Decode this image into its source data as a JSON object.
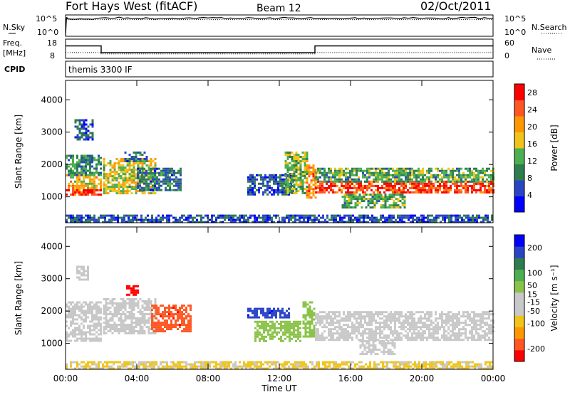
{
  "header": {
    "station": "Fort Hays West (fitACF)",
    "beam": "Beam 12",
    "date": "02/Oct/2011"
  },
  "chart_data": [
    {
      "type": "line",
      "name": "noise-panel",
      "left_label": "N.Sky",
      "right_label": "N.Search",
      "left_ticks": [
        "10^5",
        "10^0"
      ],
      "right_ticks": [
        "10^5",
        "10^0"
      ],
      "scale": "log",
      "series": [
        {
          "name": "N.Sky",
          "style": "solid",
          "x_hours": [
            0,
            0.05,
            0.1,
            2,
            4,
            6,
            8,
            10,
            12,
            14,
            16,
            18,
            20,
            22,
            24
          ],
          "y_level": [
            0.0,
            0.85,
            0.82,
            0.86,
            0.84,
            0.85,
            0.86,
            0.84,
            0.85,
            0.83,
            0.85,
            0.86,
            0.84,
            0.85,
            0.84
          ]
        },
        {
          "name": "N.Search",
          "style": "dotted",
          "x_hours": [
            0,
            24
          ],
          "y_level": [
            0.78,
            0.78
          ]
        }
      ]
    },
    {
      "type": "line",
      "name": "frequency-panel",
      "left_label": "Freq. [MHz]",
      "right_label": "Nave",
      "left_ticks": [
        "18",
        "8"
      ],
      "right_ticks": [
        "60",
        "0"
      ],
      "left_range": [
        8,
        18
      ],
      "right_range": [
        0,
        60
      ],
      "series": [
        {
          "name": "Freq.",
          "style": "solid",
          "x_hours": [
            0,
            2,
            2,
            14,
            14,
            24
          ],
          "y": [
            14.5,
            14.5,
            11.0,
            11.0,
            14.5,
            14.5
          ]
        },
        {
          "name": "Nave",
          "style": "dotted",
          "x_hours": [
            0,
            2,
            2,
            14,
            14,
            24
          ],
          "y": [
            18,
            18,
            14,
            14,
            18,
            18
          ]
        }
      ]
    },
    {
      "type": "text",
      "name": "cpid-panel",
      "label": "CPID",
      "value": "themis 3300 IF"
    },
    {
      "type": "heatmap",
      "name": "power-panel",
      "ylabel": "Slant Range [km]",
      "yticks": [
        1000,
        2000,
        3000,
        4000
      ],
      "ylim": [
        200,
        4600
      ],
      "colorbar": {
        "label": "Power [dB]",
        "ticks": [
          4,
          8,
          12,
          16,
          20,
          24,
          28
        ],
        "range": [
          0,
          30
        ],
        "colors": [
          "#0000ff",
          "#2a45c4",
          "#2e7d4f",
          "#4caf50",
          "#f0c419",
          "#ff9800",
          "#ff5722",
          "#ff0000"
        ]
      },
      "blobs": [
        {
          "t": [
            0.0,
            2.0
          ],
          "r": [
            1100,
            1300
          ],
          "v": 26
        },
        {
          "t": [
            0.0,
            2.0
          ],
          "r": [
            1300,
            1700
          ],
          "v": 18
        },
        {
          "t": [
            0.0,
            2.0
          ],
          "r": [
            1700,
            2300
          ],
          "v": 10
        },
        {
          "t": [
            0.5,
            1.5
          ],
          "r": [
            2800,
            3400
          ],
          "v": 6
        },
        {
          "t": [
            2.1,
            5.0
          ],
          "r": [
            1100,
            2200
          ],
          "v": 16
        },
        {
          "t": [
            4.0,
            6.5
          ],
          "r": [
            1200,
            1900
          ],
          "v": 8
        },
        {
          "t": [
            3.3,
            4.6
          ],
          "r": [
            2100,
            2400
          ],
          "v": 8
        },
        {
          "t": [
            10.2,
            12.8
          ],
          "r": [
            1100,
            1700
          ],
          "v": 6
        },
        {
          "t": [
            12.3,
            13.6
          ],
          "r": [
            1100,
            2400
          ],
          "v": 14
        },
        {
          "t": [
            13.5,
            14.0
          ],
          "r": [
            1000,
            2000
          ],
          "v": 22
        },
        {
          "t": [
            14.0,
            24.0
          ],
          "r": [
            1150,
            1500
          ],
          "v": 26
        },
        {
          "t": [
            14.0,
            24.0
          ],
          "r": [
            1500,
            1900
          ],
          "v": 12
        },
        {
          "t": [
            15.5,
            19.0
          ],
          "r": [
            700,
            1100
          ],
          "v": 12
        },
        {
          "t": [
            0.0,
            24.0
          ],
          "r": [
            250,
            450
          ],
          "v": 6
        }
      ]
    },
    {
      "type": "heatmap",
      "name": "velocity-panel",
      "ylabel": "Slant Range [km]",
      "yticks": [
        1000,
        2000,
        3000,
        4000
      ],
      "ylim": [
        200,
        4600
      ],
      "xlabel": "Time UT",
      "xticks": [
        "00:00",
        "04:00",
        "08:00",
        "12:00",
        "16:00",
        "20:00",
        "00:00"
      ],
      "colorbar": {
        "label": "Velocity [m s⁻¹]",
        "ticks": [
          200,
          100,
          50,
          15,
          -15,
          -50,
          -100,
          -200
        ],
        "range": [
          -250,
          250
        ],
        "colors": [
          "#ff0000",
          "#ff5722",
          "#ff9800",
          "#f0c419",
          "#c8c8c8",
          "#c8c8c8",
          "#8bc34a",
          "#4caf50",
          "#2e7d4f",
          "#2a45c4",
          "#0000ff"
        ]
      },
      "blobs": [
        {
          "t": [
            0.0,
            2.0
          ],
          "r": [
            1100,
            2300
          ],
          "v": 0
        },
        {
          "t": [
            0.6,
            1.3
          ],
          "r": [
            3000,
            3400
          ],
          "v": -60
        },
        {
          "t": [
            2.1,
            5.0
          ],
          "r": [
            1300,
            2400
          ],
          "v": 0
        },
        {
          "t": [
            3.4,
            4.1
          ],
          "r": [
            2500,
            2800
          ],
          "v": -220
        },
        {
          "t": [
            4.8,
            7.0
          ],
          "r": [
            1400,
            2200
          ],
          "v": -200
        },
        {
          "t": [
            10.2,
            12.5
          ],
          "r": [
            1800,
            2100
          ],
          "v": 200
        },
        {
          "t": [
            10.6,
            13.2
          ],
          "r": [
            1100,
            1700
          ],
          "v": 60
        },
        {
          "t": [
            13.3,
            14.0
          ],
          "r": [
            1200,
            2300
          ],
          "v": 40
        },
        {
          "t": [
            14.0,
            24.0
          ],
          "r": [
            1100,
            2000
          ],
          "v": 0
        },
        {
          "t": [
            16.5,
            18.5
          ],
          "r": [
            700,
            1100
          ],
          "v": 0
        },
        {
          "t": [
            0.0,
            24.0
          ],
          "r": [
            250,
            450
          ],
          "v": -70
        }
      ]
    }
  ]
}
